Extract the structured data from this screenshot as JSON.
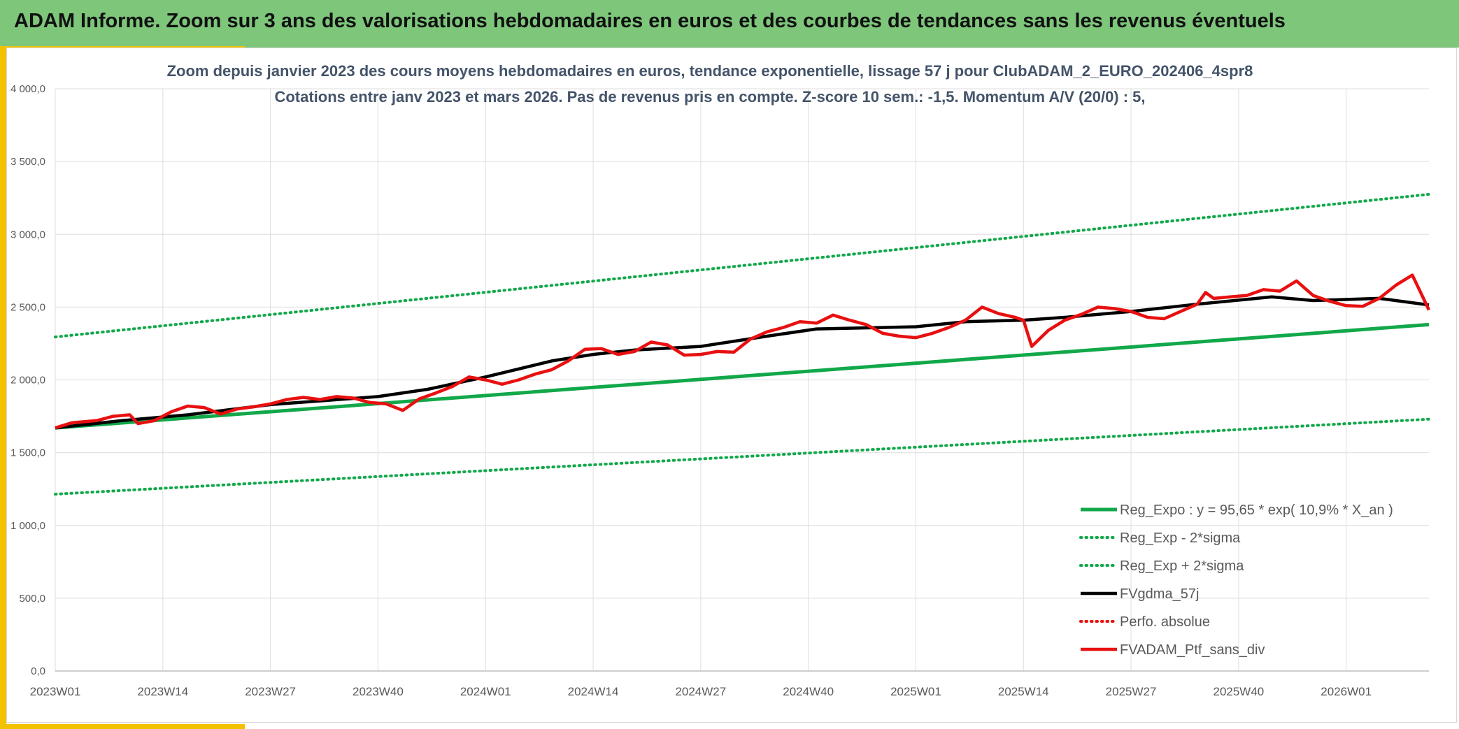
{
  "banner": {
    "title": "ADAM Informe. Zoom sur 3 ans des valorisations hebdomadaires en euros et des courbes de tendances sans les revenus éventuels"
  },
  "colors": {
    "banner_bg": "#7dc67a",
    "accent_gold": "#f2c200",
    "trend_green": "#12a84a",
    "mma_black": "#000000",
    "price_red": "#e81010",
    "title_text": "#44546a"
  },
  "chart_data": {
    "type": "line",
    "title_line1": "Zoom depuis janvier 2023 des cours moyens hebdomadaires en euros, tendance exponentielle, lissage 57 j pour ClubADAM_2_EURO_202406_4spr8",
    "title_line2": "Cotations entre janv 2023 et mars 2026. Pas de revenus pris en compte. Z-score 10 sem.: -1,5. Momentum A/V (20/0) : 5,",
    "ylim": [
      0,
      4000
    ],
    "y_ticks": [
      0,
      500,
      1000,
      1500,
      2000,
      2500,
      3000,
      3500,
      4000
    ],
    "y_tick_labels": [
      "0,0",
      "500,0",
      "1 000,0",
      "1 500,0",
      "2 000,0",
      "2 500,0",
      "3 000,0",
      "3 500,0",
      "4 000,0"
    ],
    "x_range_weeks": [
      0,
      166
    ],
    "x_ticks": [
      0,
      13,
      26,
      39,
      52,
      65,
      78,
      91,
      104,
      117,
      130,
      143,
      156
    ],
    "x_tick_labels": [
      "2023W01",
      "2023W14",
      "2023W27",
      "2023W40",
      "2024W01",
      "2024W14",
      "2024W27",
      "2024W40",
      "2025W01",
      "2025W14",
      "2025W27",
      "2025W40",
      "2026W01"
    ],
    "grid": "vertical and horizontal",
    "legend_position": "bottom-right",
    "series": [
      {
        "name": "Reg_Expo : y = 95,65 * exp( 10,9% *  X_an )",
        "style": "solid-green",
        "points": [
          [
            0,
            1670
          ],
          [
            166,
            2380
          ]
        ]
      },
      {
        "name": "Reg_Exp - 2*sigma",
        "style": "dotted-green",
        "points": [
          [
            0,
            1215
          ],
          [
            166,
            1730
          ]
        ]
      },
      {
        "name": "Reg_Exp + 2*sigma",
        "style": "dotted-green",
        "points": [
          [
            0,
            2295
          ],
          [
            166,
            3275
          ]
        ]
      },
      {
        "name": "FVgdma_57j",
        "style": "solid-black",
        "points": [
          [
            0,
            1670
          ],
          [
            8,
            1720
          ],
          [
            16,
            1760
          ],
          [
            26,
            1830
          ],
          [
            39,
            1885
          ],
          [
            45,
            1935
          ],
          [
            52,
            2020
          ],
          [
            60,
            2130
          ],
          [
            65,
            2175
          ],
          [
            70,
            2205
          ],
          [
            78,
            2230
          ],
          [
            86,
            2300
          ],
          [
            92,
            2350
          ],
          [
            104,
            2365
          ],
          [
            110,
            2400
          ],
          [
            117,
            2410
          ],
          [
            122,
            2430
          ],
          [
            130,
            2470
          ],
          [
            138,
            2520
          ],
          [
            147,
            2570
          ],
          [
            152,
            2545
          ],
          [
            160,
            2560
          ],
          [
            166,
            2515
          ]
        ]
      },
      {
        "name": "Perfo. absolue",
        "style": "dotted-red",
        "points": []
      },
      {
        "name": "FVADAM_Ptf_sans_div",
        "style": "solid-red",
        "points": [
          [
            0,
            1670
          ],
          [
            2,
            1705
          ],
          [
            5,
            1720
          ],
          [
            7,
            1750
          ],
          [
            9,
            1760
          ],
          [
            10,
            1700
          ],
          [
            12,
            1720
          ],
          [
            14,
            1780
          ],
          [
            16,
            1820
          ],
          [
            18,
            1810
          ],
          [
            20,
            1765
          ],
          [
            22,
            1800
          ],
          [
            24,
            1815
          ],
          [
            26,
            1835
          ],
          [
            28,
            1865
          ],
          [
            30,
            1880
          ],
          [
            32,
            1865
          ],
          [
            34,
            1885
          ],
          [
            36,
            1875
          ],
          [
            38,
            1845
          ],
          [
            40,
            1835
          ],
          [
            42,
            1790
          ],
          [
            44,
            1870
          ],
          [
            46,
            1910
          ],
          [
            48,
            1955
          ],
          [
            50,
            2020
          ],
          [
            52,
            2000
          ],
          [
            54,
            1970
          ],
          [
            56,
            2000
          ],
          [
            58,
            2040
          ],
          [
            60,
            2070
          ],
          [
            62,
            2130
          ],
          [
            64,
            2210
          ],
          [
            66,
            2215
          ],
          [
            68,
            2175
          ],
          [
            70,
            2195
          ],
          [
            72,
            2260
          ],
          [
            74,
            2240
          ],
          [
            76,
            2170
          ],
          [
            78,
            2175
          ],
          [
            80,
            2195
          ],
          [
            82,
            2190
          ],
          [
            84,
            2280
          ],
          [
            86,
            2330
          ],
          [
            88,
            2360
          ],
          [
            90,
            2400
          ],
          [
            92,
            2390
          ],
          [
            94,
            2445
          ],
          [
            96,
            2410
          ],
          [
            98,
            2380
          ],
          [
            100,
            2320
          ],
          [
            102,
            2300
          ],
          [
            104,
            2290
          ],
          [
            106,
            2320
          ],
          [
            108,
            2360
          ],
          [
            110,
            2410
          ],
          [
            112,
            2500
          ],
          [
            114,
            2455
          ],
          [
            116,
            2430
          ],
          [
            117,
            2410
          ],
          [
            118,
            2230
          ],
          [
            120,
            2340
          ],
          [
            122,
            2410
          ],
          [
            124,
            2450
          ],
          [
            126,
            2500
          ],
          [
            128,
            2490
          ],
          [
            130,
            2470
          ],
          [
            132,
            2430
          ],
          [
            134,
            2420
          ],
          [
            136,
            2470
          ],
          [
            138,
            2520
          ],
          [
            139,
            2600
          ],
          [
            140,
            2560
          ],
          [
            142,
            2570
          ],
          [
            144,
            2580
          ],
          [
            146,
            2620
          ],
          [
            148,
            2610
          ],
          [
            150,
            2680
          ],
          [
            152,
            2580
          ],
          [
            154,
            2540
          ],
          [
            156,
            2510
          ],
          [
            158,
            2505
          ],
          [
            160,
            2560
          ],
          [
            162,
            2650
          ],
          [
            164,
            2720
          ],
          [
            165,
            2600
          ],
          [
            166,
            2480
          ]
        ]
      }
    ]
  }
}
